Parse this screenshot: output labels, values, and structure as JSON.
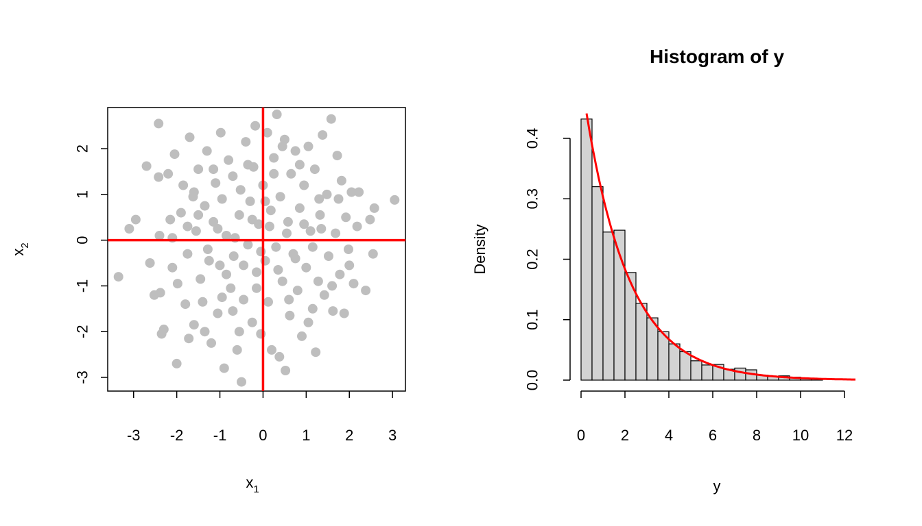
{
  "chart_data": [
    {
      "type": "scatter",
      "title": "",
      "xlabel": "x",
      "xlabel_sub": "1",
      "ylabel": "x",
      "ylabel_sub": "2",
      "xlim": [
        -3.6,
        3.3
      ],
      "ylim": [
        -3.3,
        2.9
      ],
      "x_ticks": [
        -3,
        -2,
        -1,
        0,
        1,
        2,
        3
      ],
      "y_ticks": [
        -3,
        -2,
        -1,
        0,
        1,
        2
      ],
      "x_tick_labels": [
        "-3",
        "-2",
        "-1",
        "0",
        "1",
        "2",
        "3"
      ],
      "y_tick_labels": [
        "-3",
        "-2",
        "-1",
        "0",
        "1",
        "2"
      ],
      "point_color": "#bebebe",
      "reference_lines": {
        "color": "#ff0000",
        "h": 0,
        "v": 0
      },
      "points": [
        [
          -3.35,
          -0.8
        ],
        [
          -3.1,
          0.25
        ],
        [
          -2.95,
          0.45
        ],
        [
          -2.7,
          1.62
        ],
        [
          -2.62,
          -0.5
        ],
        [
          -2.52,
          -1.2
        ],
        [
          -2.42,
          2.55
        ],
        [
          -2.42,
          1.38
        ],
        [
          -2.4,
          0.1
        ],
        [
          -2.38,
          -1.15
        ],
        [
          -2.35,
          -2.05
        ],
        [
          -2.3,
          -1.95
        ],
        [
          -2.2,
          1.45
        ],
        [
          -2.15,
          0.45
        ],
        [
          -2.1,
          -0.6
        ],
        [
          -2.05,
          1.88
        ],
        [
          -2.0,
          -2.7
        ],
        [
          -1.98,
          -0.95
        ],
        [
          -1.9,
          0.6
        ],
        [
          -1.85,
          1.2
        ],
        [
          -1.8,
          -1.4
        ],
        [
          -1.75,
          -0.3
        ],
        [
          -1.72,
          -2.15
        ],
        [
          -1.7,
          2.25
        ],
        [
          -1.62,
          0.95
        ],
        [
          -1.6,
          -1.85
        ],
        [
          -1.55,
          0.2
        ],
        [
          -1.5,
          1.55
        ],
        [
          -1.45,
          -0.85
        ],
        [
          -1.4,
          -1.35
        ],
        [
          -1.35,
          0.75
        ],
        [
          -1.3,
          1.95
        ],
        [
          -1.28,
          -0.2
        ],
        [
          -1.2,
          -2.25
        ],
        [
          -1.15,
          0.4
        ],
        [
          -1.1,
          1.25
        ],
        [
          -1.05,
          -1.6
        ],
        [
          -1.0,
          -0.55
        ],
        [
          -0.98,
          2.35
        ],
        [
          -0.95,
          0.9
        ],
        [
          -0.9,
          -2.8
        ],
        [
          -0.85,
          0.1
        ],
        [
          -0.8,
          1.75
        ],
        [
          -0.75,
          -1.05
        ],
        [
          -0.7,
          1.4
        ],
        [
          -0.68,
          -0.35
        ],
        [
          -0.6,
          -2.4
        ],
        [
          -0.55,
          0.55
        ],
        [
          -0.52,
          1.1
        ],
        [
          -0.5,
          -3.1
        ],
        [
          -0.45,
          -1.3
        ],
        [
          -0.4,
          2.15
        ],
        [
          -0.35,
          -0.1
        ],
        [
          -0.3,
          0.85
        ],
        [
          -0.25,
          -1.8
        ],
        [
          -0.22,
          1.6
        ],
        [
          -0.18,
          2.5
        ],
        [
          -0.15,
          -0.7
        ],
        [
          -0.1,
          0.35
        ],
        [
          -0.05,
          -2.05
        ],
        [
          0.0,
          1.2
        ],
        [
          0.05,
          -0.45
        ],
        [
          0.1,
          2.35
        ],
        [
          0.12,
          -1.35
        ],
        [
          0.18,
          0.65
        ],
        [
          0.2,
          -2.4
        ],
        [
          0.25,
          1.8
        ],
        [
          0.3,
          -0.15
        ],
        [
          0.32,
          2.75
        ],
        [
          0.38,
          -2.55
        ],
        [
          0.4,
          0.95
        ],
        [
          0.45,
          -0.9
        ],
        [
          0.5,
          2.2
        ],
        [
          0.52,
          -2.85
        ],
        [
          0.58,
          0.4
        ],
        [
          0.62,
          -1.65
        ],
        [
          0.65,
          1.45
        ],
        [
          0.7,
          -0.3
        ],
        [
          0.75,
          1.95
        ],
        [
          0.8,
          -1.1
        ],
        [
          0.85,
          0.7
        ],
        [
          0.9,
          -2.1
        ],
        [
          0.95,
          1.2
        ],
        [
          1.0,
          -0.6
        ],
        [
          1.05,
          2.05
        ],
        [
          1.1,
          0.2
        ],
        [
          1.15,
          -1.5
        ],
        [
          1.2,
          1.55
        ],
        [
          1.22,
          -2.45
        ],
        [
          1.28,
          -0.9
        ],
        [
          1.32,
          0.55
        ],
        [
          1.38,
          2.3
        ],
        [
          1.42,
          -1.2
        ],
        [
          1.48,
          1.0
        ],
        [
          1.52,
          -0.35
        ],
        [
          1.58,
          2.65
        ],
        [
          1.62,
          -1.55
        ],
        [
          1.68,
          0.15
        ],
        [
          1.72,
          1.85
        ],
        [
          1.78,
          -0.75
        ],
        [
          1.82,
          1.3
        ],
        [
          1.88,
          -1.6
        ],
        [
          1.92,
          0.5
        ],
        [
          1.98,
          -0.2
        ],
        [
          2.05,
          1.05
        ],
        [
          2.1,
          -0.95
        ],
        [
          2.18,
          0.3
        ],
        [
          2.22,
          1.05
        ],
        [
          2.38,
          -1.1
        ],
        [
          2.48,
          0.45
        ],
        [
          2.55,
          -0.3
        ],
        [
          2.58,
          0.7
        ],
        [
          3.05,
          0.88
        ],
        [
          -1.5,
          0.55
        ],
        [
          -1.25,
          -0.45
        ],
        [
          -1.05,
          0.25
        ],
        [
          -0.85,
          -0.75
        ],
        [
          -0.65,
          0.05
        ],
        [
          -0.45,
          -0.55
        ],
        [
          -0.25,
          0.45
        ],
        [
          -0.05,
          -0.25
        ],
        [
          0.15,
          0.3
        ],
        [
          0.35,
          -0.65
        ],
        [
          0.55,
          0.15
        ],
        [
          0.75,
          -0.4
        ],
        [
          0.95,
          0.35
        ],
        [
          1.15,
          -0.15
        ],
        [
          1.35,
          0.25
        ],
        [
          -1.15,
          1.55
        ],
        [
          -0.7,
          -1.55
        ],
        [
          0.25,
          1.45
        ],
        [
          0.6,
          -1.3
        ],
        [
          -0.35,
          1.65
        ],
        [
          1.05,
          -1.8
        ],
        [
          -1.6,
          1.05
        ],
        [
          1.6,
          -1.0
        ],
        [
          -0.95,
          -1.25
        ],
        [
          0.85,
          1.65
        ],
        [
          -2.1,
          0.05
        ],
        [
          2.0,
          -0.55
        ],
        [
          -0.15,
          -1.05
        ],
        [
          0.05,
          0.85
        ],
        [
          -1.75,
          0.3
        ],
        [
          1.75,
          0.9
        ],
        [
          -0.55,
          -2.0
        ],
        [
          0.45,
          2.05
        ],
        [
          -1.35,
          -2.0
        ],
        [
          1.3,
          0.9
        ]
      ]
    },
    {
      "type": "bar",
      "title": "Histogram of y",
      "xlabel": "y",
      "ylabel": "Density",
      "bin_width": 0.5,
      "bin_start": 0,
      "xlim": [
        0,
        12.5
      ],
      "ylim": [
        0,
        0.45
      ],
      "x_ticks": [
        0,
        2,
        4,
        6,
        8,
        10,
        12
      ],
      "y_ticks": [
        0.0,
        0.1,
        0.2,
        0.3,
        0.4
      ],
      "x_tick_labels": [
        "0",
        "2",
        "4",
        "6",
        "8",
        "10",
        "12"
      ],
      "y_tick_labels": [
        "0.0",
        "0.1",
        "0.2",
        "0.3",
        "0.4"
      ],
      "bar_fill": "#d3d3d3",
      "bar_stroke": "#000000",
      "values": [
        0.432,
        0.32,
        0.245,
        0.248,
        0.178,
        0.127,
        0.103,
        0.08,
        0.06,
        0.047,
        0.032,
        0.025,
        0.026,
        0.018,
        0.02,
        0.017,
        0.008,
        0.006,
        0.007,
        0.005,
        0.003,
        0.002
      ],
      "curve": {
        "color": "#ff0000",
        "rate": 0.5,
        "x_from": 0.25,
        "x_to": 12.5
      }
    }
  ]
}
